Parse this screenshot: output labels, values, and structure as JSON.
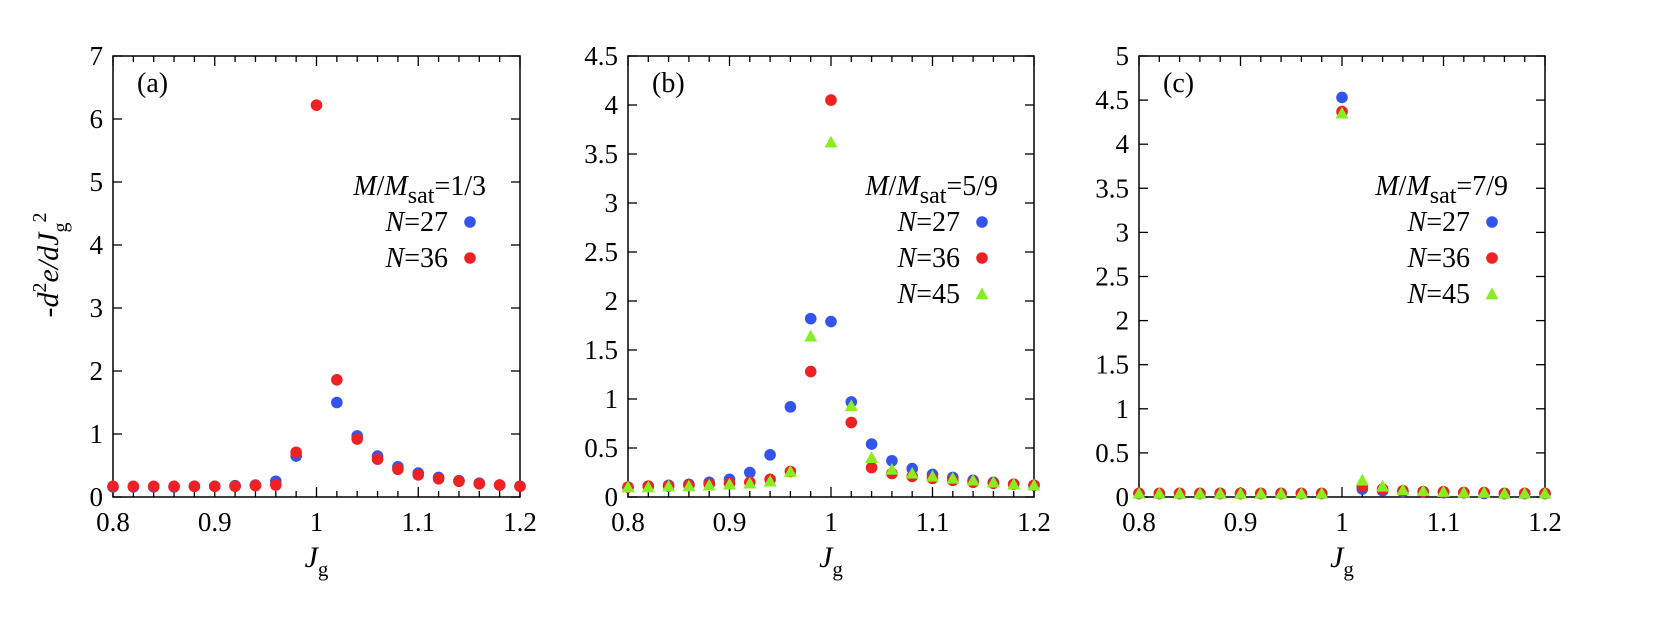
{
  "ylabel": {
    "prefix": "-d",
    "sup1": "2",
    "mid": "e/dJ",
    "sub": "g",
    "sup2": "2"
  },
  "xlabel": {
    "main": "J",
    "sub": "g"
  },
  "chart_data": [
    {
      "type": "scatter",
      "panel_label": "(a)",
      "xlim": [
        0.8,
        1.2
      ],
      "ylim": [
        0,
        7
      ],
      "xticks": [
        0.8,
        0.9,
        1,
        1.1,
        1.2
      ],
      "yticks": [
        0,
        1,
        2,
        3,
        4,
        5,
        6,
        7
      ],
      "legend_title": {
        "M": "M",
        "slash": "/",
        "Msat": "M",
        "sat_sub": "sat",
        "value": "=1/3"
      },
      "series": [
        {
          "name": "N=27",
          "name_var": "N",
          "name_value": "=27",
          "color": "#3355ee",
          "marker": "circle",
          "x": [
            0.8,
            0.82,
            0.84,
            0.86,
            0.88,
            0.9,
            0.92,
            0.94,
            0.96,
            0.98,
            1.02,
            1.04,
            1.06,
            1.08,
            1.1,
            1.12,
            1.14,
            1.16,
            1.18,
            1.2
          ],
          "y": [
            0.16,
            0.16,
            0.16,
            0.16,
            0.17,
            0.17,
            0.18,
            0.19,
            0.25,
            0.65,
            1.5,
            0.97,
            0.65,
            0.48,
            0.38,
            0.31,
            0.26,
            0.22,
            0.19,
            0.17
          ]
        },
        {
          "name": "N=36",
          "name_var": "N",
          "name_value": "=36",
          "color": "#ee2222",
          "marker": "circle",
          "x": [
            0.8,
            0.82,
            0.84,
            0.86,
            0.88,
            0.9,
            0.92,
            0.94,
            0.96,
            0.98,
            1.0,
            1.02,
            1.04,
            1.06,
            1.08,
            1.1,
            1.12,
            1.14,
            1.16,
            1.18,
            1.2
          ],
          "y": [
            0.17,
            0.17,
            0.17,
            0.17,
            0.17,
            0.17,
            0.17,
            0.18,
            0.19,
            0.71,
            6.22,
            1.86,
            0.92,
            0.6,
            0.44,
            0.35,
            0.29,
            0.25,
            0.21,
            0.19,
            0.17
          ]
        }
      ]
    },
    {
      "type": "scatter",
      "panel_label": "(b)",
      "xlim": [
        0.8,
        1.2
      ],
      "ylim": [
        0,
        4.5
      ],
      "xticks": [
        0.8,
        0.9,
        1,
        1.1,
        1.2
      ],
      "yticks": [
        0,
        0.5,
        1,
        1.5,
        2,
        2.5,
        3,
        3.5,
        4,
        4.5
      ],
      "legend_title": {
        "M": "M",
        "slash": "/",
        "Msat": "M",
        "sat_sub": "sat",
        "value": "=5/9"
      },
      "series": [
        {
          "name": "N=27",
          "name_var": "N",
          "name_value": "=27",
          "color": "#3355ee",
          "marker": "circle",
          "x": [
            0.8,
            0.82,
            0.84,
            0.86,
            0.88,
            0.9,
            0.92,
            0.94,
            0.96,
            0.98,
            1.0,
            1.02,
            1.04,
            1.06,
            1.08,
            1.1,
            1.12,
            1.14,
            1.16,
            1.18,
            1.2
          ],
          "y": [
            0.1,
            0.11,
            0.12,
            0.13,
            0.15,
            0.18,
            0.25,
            0.43,
            0.92,
            1.82,
            1.79,
            0.97,
            0.54,
            0.37,
            0.29,
            0.23,
            0.2,
            0.17,
            0.15,
            0.13,
            0.12
          ]
        },
        {
          "name": "N=36",
          "name_var": "N",
          "name_value": "=36",
          "color": "#ee2222",
          "marker": "circle",
          "x": [
            0.8,
            0.82,
            0.84,
            0.86,
            0.88,
            0.9,
            0.92,
            0.94,
            0.96,
            0.98,
            1.0,
            1.02,
            1.04,
            1.06,
            1.08,
            1.1,
            1.12,
            1.14,
            1.16,
            1.18,
            1.2
          ],
          "y": [
            0.1,
            0.11,
            0.11,
            0.12,
            0.13,
            0.14,
            0.15,
            0.18,
            0.26,
            1.28,
            4.05,
            0.76,
            0.3,
            0.24,
            0.21,
            0.19,
            0.17,
            0.15,
            0.14,
            0.13,
            0.12
          ]
        },
        {
          "name": "N=45",
          "name_var": "N",
          "name_value": "=45",
          "color": "#88ee22",
          "marker": "triangle",
          "x": [
            0.8,
            0.82,
            0.84,
            0.86,
            0.88,
            0.9,
            0.92,
            0.94,
            0.96,
            0.98,
            1.0,
            1.02,
            1.04,
            1.06,
            1.08,
            1.1,
            1.12,
            1.14,
            1.16,
            1.18,
            1.2
          ],
          "y": [
            0.1,
            0.1,
            0.11,
            0.11,
            0.12,
            0.13,
            0.14,
            0.16,
            0.26,
            1.64,
            3.62,
            0.93,
            0.4,
            0.28,
            0.24,
            0.21,
            0.19,
            0.17,
            0.15,
            0.13,
            0.12
          ]
        }
      ]
    },
    {
      "type": "scatter",
      "panel_label": "(c)",
      "xlim": [
        0.8,
        1.2
      ],
      "ylim": [
        0,
        5
      ],
      "xticks": [
        0.8,
        0.9,
        1,
        1.1,
        1.2
      ],
      "yticks": [
        0,
        0.5,
        1,
        1.5,
        2,
        2.5,
        3,
        3.5,
        4,
        4.5,
        5
      ],
      "legend_title": {
        "M": "M",
        "slash": "/",
        "Msat": "M",
        "sat_sub": "sat",
        "value": "=7/9"
      },
      "series": [
        {
          "name": "N=27",
          "name_var": "N",
          "name_value": "=27",
          "color": "#3355ee",
          "marker": "circle",
          "x": [
            0.8,
            0.82,
            0.84,
            0.86,
            0.88,
            0.9,
            0.92,
            0.94,
            0.96,
            0.98,
            1.0,
            1.02,
            1.04,
            1.06,
            1.08,
            1.1,
            1.12,
            1.14,
            1.16,
            1.18,
            1.2
          ],
          "y": [
            0.04,
            0.04,
            0.04,
            0.04,
            0.04,
            0.04,
            0.04,
            0.04,
            0.04,
            0.04,
            4.53,
            0.09,
            0.07,
            0.06,
            0.06,
            0.05,
            0.05,
            0.04,
            0.04,
            0.04,
            0.04
          ]
        },
        {
          "name": "N=36",
          "name_var": "N",
          "name_value": "=36",
          "color": "#ee2222",
          "marker": "circle",
          "x": [
            0.8,
            0.82,
            0.84,
            0.86,
            0.88,
            0.9,
            0.92,
            0.94,
            0.96,
            0.98,
            1.0,
            1.02,
            1.04,
            1.06,
            1.08,
            1.1,
            1.12,
            1.14,
            1.16,
            1.18,
            1.2
          ],
          "y": [
            0.04,
            0.04,
            0.04,
            0.04,
            0.04,
            0.04,
            0.04,
            0.04,
            0.04,
            0.04,
            4.37,
            0.12,
            0.09,
            0.07,
            0.06,
            0.06,
            0.05,
            0.05,
            0.04,
            0.04,
            0.04
          ]
        },
        {
          "name": "N=45",
          "name_var": "N",
          "name_value": "=45",
          "color": "#88ee22",
          "marker": "triangle",
          "x": [
            0.8,
            0.82,
            0.84,
            0.86,
            0.88,
            0.9,
            0.92,
            0.94,
            0.96,
            0.98,
            1.0,
            1.02,
            1.04,
            1.06,
            1.08,
            1.1,
            1.12,
            1.14,
            1.16,
            1.18,
            1.2
          ],
          "y": [
            0.04,
            0.04,
            0.04,
            0.04,
            0.04,
            0.04,
            0.04,
            0.04,
            0.04,
            0.04,
            4.35,
            0.19,
            0.12,
            0.08,
            0.07,
            0.06,
            0.05,
            0.05,
            0.04,
            0.04,
            0.04
          ]
        }
      ]
    }
  ]
}
